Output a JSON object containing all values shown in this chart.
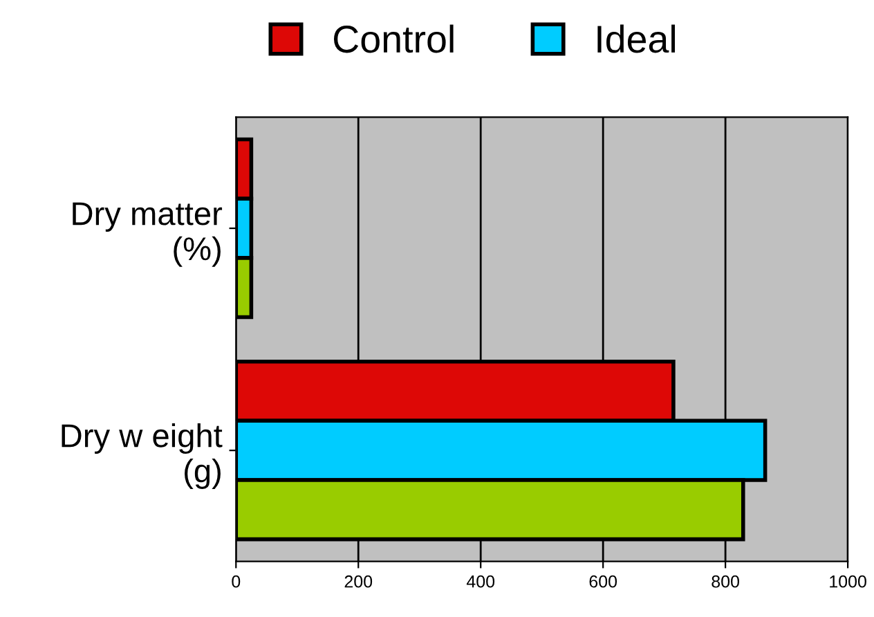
{
  "chart_data": {
    "type": "bar",
    "orientation": "horizontal",
    "categories": [
      "Dry matter\n(%)",
      "Dry w eight\n(g)"
    ],
    "series": [
      {
        "name": "Control",
        "color": "#dd0806",
        "values": [
          25,
          715
        ]
      },
      {
        "name": "Ideal",
        "color": "#00ccff",
        "values": [
          25,
          865
        ]
      },
      {
        "color": "#99cc00",
        "values": [
          25,
          829
        ]
      }
    ],
    "xlim": [
      0,
      1000
    ],
    "xticks": [
      0,
      200,
      400,
      600,
      800,
      1000
    ],
    "grid": "x",
    "legend": "top"
  }
}
